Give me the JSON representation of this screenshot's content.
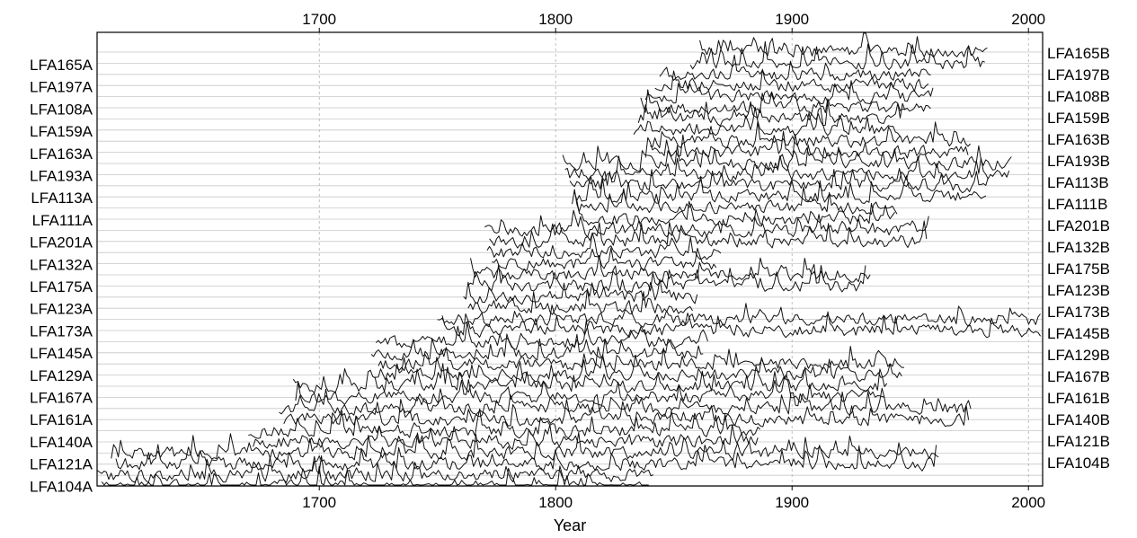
{
  "chart_data": {
    "type": "line",
    "title": "",
    "xlabel": "Year",
    "ylabel": "",
    "xlim": [
      1606,
      2006
    ],
    "x_ticks": [
      1700,
      1800,
      1900,
      2000
    ],
    "x_tick_labels": [
      "1700",
      "1800",
      "1900",
      "2000"
    ],
    "vertical_grid": true,
    "horizontal_grid": true,
    "left_labels": [
      "LFA165A",
      "LFA197A",
      "LFA108A",
      "LFA159A",
      "LFA163A",
      "LFA193A",
      "LFA113A",
      "LFA111A",
      "LFA201A",
      "LFA132A",
      "LFA175A",
      "LFA123A",
      "LFA173A",
      "LFA145A",
      "LFA129A",
      "LFA167A",
      "LFA161A",
      "LFA140A",
      "LFA121A",
      "LFA104A"
    ],
    "right_labels": [
      "LFA165B",
      "LFA197B",
      "LFA108B",
      "LFA159B",
      "LFA163B",
      "LFA193B",
      "LFA113B",
      "LFA111B",
      "LFA201B",
      "LFA132B",
      "LFA175B",
      "LFA123B",
      "LFA173B",
      "LFA145B",
      "LFA129B",
      "LFA167B",
      "LFA161B",
      "LFA140B",
      "LFA121B",
      "LFA104B"
    ],
    "series": [
      {
        "name": "LFA165A",
        "start": 1861,
        "end": 1983
      },
      {
        "name": "LFA165B",
        "start": 1857,
        "end": 1982
      },
      {
        "name": "LFA197A",
        "start": 1844,
        "end": 1959
      },
      {
        "name": "LFA197B",
        "start": 1842,
        "end": 1958
      },
      {
        "name": "LFA108A",
        "start": 1838,
        "end": 1960
      },
      {
        "name": "LFA108B",
        "start": 1836,
        "end": 1959
      },
      {
        "name": "LFA159A",
        "start": 1835,
        "end": 1948
      },
      {
        "name": "LFA159B",
        "start": 1833,
        "end": 1946
      },
      {
        "name": "LFA163A",
        "start": 1840,
        "end": 1976
      },
      {
        "name": "LFA163B",
        "start": 1838,
        "end": 1975
      },
      {
        "name": "LFA193A",
        "start": 1803,
        "end": 1993
      },
      {
        "name": "LFA193B",
        "start": 1804,
        "end": 1992
      },
      {
        "name": "LFA113A",
        "start": 1806,
        "end": 1983
      },
      {
        "name": "LFA113B",
        "start": 1808,
        "end": 1982
      },
      {
        "name": "LFA111A",
        "start": 1807,
        "end": 1945
      },
      {
        "name": "LFA111B",
        "start": 1809,
        "end": 1944
      },
      {
        "name": "LFA201A",
        "start": 1770,
        "end": 1958
      },
      {
        "name": "LFA201B",
        "start": 1772,
        "end": 1957
      },
      {
        "name": "LFA132A",
        "start": 1771,
        "end": 1870
      },
      {
        "name": "LFA132B",
        "start": 1773,
        "end": 1868
      },
      {
        "name": "LFA175A",
        "start": 1764,
        "end": 1934
      },
      {
        "name": "LFA175B",
        "start": 1763,
        "end": 1932
      },
      {
        "name": "LFA123A",
        "start": 1761,
        "end": 1860
      },
      {
        "name": "LFA123B",
        "start": 1763,
        "end": 1858
      },
      {
        "name": "LFA173A",
        "start": 1750,
        "end": 2006
      },
      {
        "name": "LFA173B",
        "start": 1752,
        "end": 2006
      },
      {
        "name": "LFA145A",
        "start": 1724,
        "end": 1865
      },
      {
        "name": "LFA145B",
        "start": 1722,
        "end": 1863
      },
      {
        "name": "LFA129A",
        "start": 1725,
        "end": 1948
      },
      {
        "name": "LFA129B",
        "start": 1723,
        "end": 1947
      },
      {
        "name": "LFA167A",
        "start": 1689,
        "end": 1941
      },
      {
        "name": "LFA167B",
        "start": 1690,
        "end": 1940
      },
      {
        "name": "LFA161A",
        "start": 1683,
        "end": 1976
      },
      {
        "name": "LFA161B",
        "start": 1685,
        "end": 1975
      },
      {
        "name": "LFA140A",
        "start": 1670,
        "end": 1887
      },
      {
        "name": "LFA140B",
        "start": 1672,
        "end": 1886
      },
      {
        "name": "LFA121A",
        "start": 1612,
        "end": 1962
      },
      {
        "name": "LFA121B",
        "start": 1614,
        "end": 1961
      },
      {
        "name": "LFA104A",
        "start": 1606,
        "end": 1842
      },
      {
        "name": "LFA104B",
        "start": 1608,
        "end": 1840
      }
    ]
  }
}
